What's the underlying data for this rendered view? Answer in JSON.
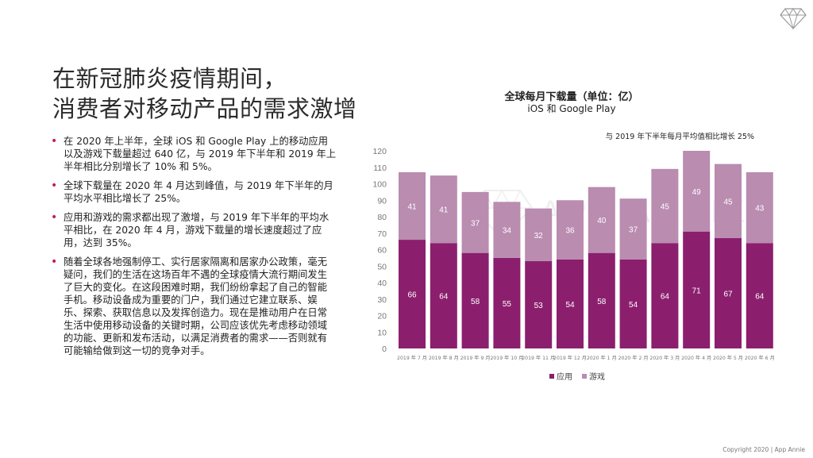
{
  "title": {
    "line1": "在新冠肺炎疫情期间，",
    "line2": "消费者对移动产品的需求激增"
  },
  "bullets": [
    "在 2020 年上半年，全球 iOS 和 Google Play 上的移动应用以及游戏下载量超过 640 亿，与 2019 年下半年和 2019 年上半年相比分别增长了 10% 和 5%。",
    "全球下载量在 2020 年 4 月达到峰值，与 2019 年下半年的月平均水平相比增长了 25%。",
    "应用和游戏的需求都出现了激增，与 2019 年下半年的平均水平相比，在 2020 年 4 月，游戏下载量的增长速度超过了应用，达到 35%。",
    "随着全球各地强制停工、实行居家隔离和居家办公政策，毫无疑问，我们的生活在这场百年不遇的全球疫情大流行期间发生了巨大的变化。在这段困难时期，我们纷纷拿起了自己的智能手机。移动设备成为重要的门户，我们通过它建立联系、娱乐、探索、获取信息以及发挥创造力。现在是推动用户在日常生活中使用移动设备的关键时期，公司应该优先考虑移动领域的功能、更新和发布活动，以满足消费者的需求——否则就有可能输给做到这一切的竞争对手。"
  ],
  "watermark": "APP ANNIE",
  "copyright": "Copyright 2020 | App Annie",
  "colors": {
    "apps": "#8b1f6e",
    "games": "#b98cb0",
    "bullet": "#c2185b",
    "axis_text": "#777777",
    "grid": "#e6e6e6"
  },
  "chart_data": {
    "type": "bar",
    "stacked": true,
    "title": "全球每月下载量（单位：亿）",
    "subtitle": "iOS 和 Google Play",
    "annotation": "与 2019 年下半年每月平均值相比增长 25%",
    "categories": [
      "2019 年 7 月",
      "2019 年 8 月",
      "2019 年 9 月",
      "2019 年 10 月",
      "2019 年 11 月",
      "2019 年 12 月",
      "2020 年 1 月",
      "2020 年 2 月",
      "2020 年 3 月",
      "2020 年 4 月",
      "2020 年 5 月",
      "2020 年 6 月"
    ],
    "series": [
      {
        "name": "应用",
        "values": [
          66,
          64,
          58,
          55,
          53,
          54,
          58,
          54,
          64,
          71,
          67,
          64
        ]
      },
      {
        "name": "游戏",
        "values": [
          41,
          41,
          37,
          34,
          32,
          36,
          40,
          37,
          45,
          49,
          45,
          43
        ]
      }
    ],
    "yticks": [
      0,
      10,
      20,
      30,
      40,
      50,
      60,
      70,
      80,
      90,
      100,
      110,
      120
    ],
    "ylim": [
      0,
      120
    ],
    "legend": "bottom-center",
    "grid": false
  }
}
